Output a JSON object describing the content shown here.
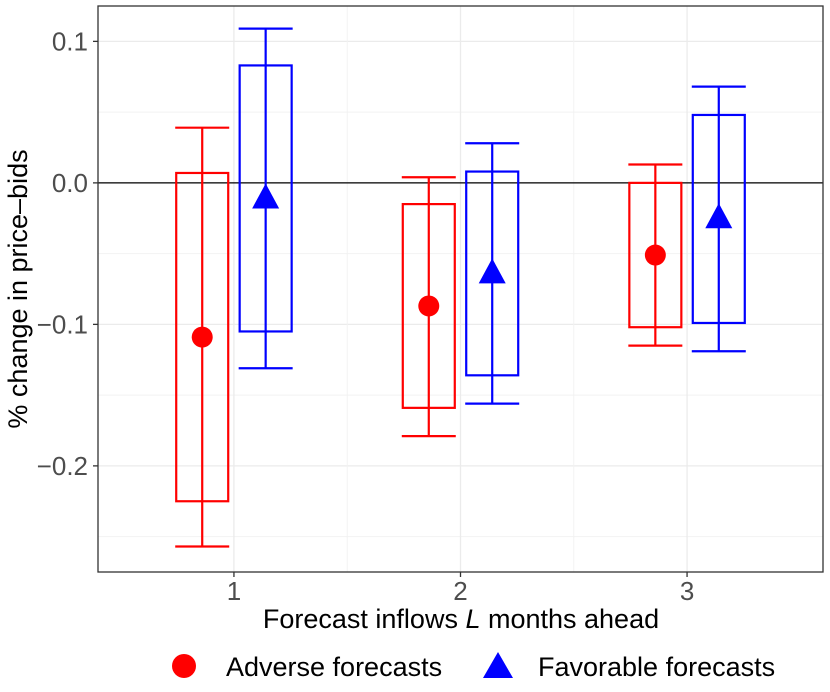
{
  "chart_data": {
    "type": "boxplot-errorbar",
    "xlabel_prefix": "Forecast inflows ",
    "xlabel_var": "L",
    "xlabel_suffix": " months ahead",
    "ylabel": "% change in price–bids",
    "ylim": [
      -0.275,
      0.125
    ],
    "xlim": [
      0.4,
      3.6
    ],
    "y_ticks": [
      -0.2,
      -0.1,
      0.0,
      0.1
    ],
    "y_tick_labels": [
      "−0.2",
      "−0.1",
      "0.0",
      "0.1"
    ],
    "x_ticks": [
      1,
      2,
      3
    ],
    "x_tick_labels": [
      "1",
      "2",
      "3"
    ],
    "reference_line": 0,
    "dodge": 0.14,
    "series": [
      {
        "name": "Adverse forecasts",
        "color": "#ff0000",
        "marker": "circle",
        "points": [
          {
            "x": 1,
            "estimate": -0.109,
            "box_low": -0.225,
            "box_high": 0.007,
            "ci_low": -0.257,
            "ci_high": 0.039
          },
          {
            "x": 2,
            "estimate": -0.087,
            "box_low": -0.159,
            "box_high": -0.015,
            "ci_low": -0.179,
            "ci_high": 0.004
          },
          {
            "x": 3,
            "estimate": -0.051,
            "box_low": -0.102,
            "box_high": 0.0,
            "ci_low": -0.115,
            "ci_high": 0.013
          }
        ]
      },
      {
        "name": "Favorable forecasts",
        "color": "#0000ff",
        "marker": "triangle",
        "points": [
          {
            "x": 1,
            "estimate": -0.011,
            "box_low": -0.105,
            "box_high": 0.083,
            "ci_low": -0.131,
            "ci_high": 0.109
          },
          {
            "x": 2,
            "estimate": -0.064,
            "box_low": -0.136,
            "box_high": 0.008,
            "ci_low": -0.156,
            "ci_high": 0.028
          },
          {
            "x": 3,
            "estimate": -0.025,
            "box_low": -0.099,
            "box_high": 0.048,
            "ci_low": -0.119,
            "ci_high": 0.068
          }
        ]
      }
    ]
  }
}
